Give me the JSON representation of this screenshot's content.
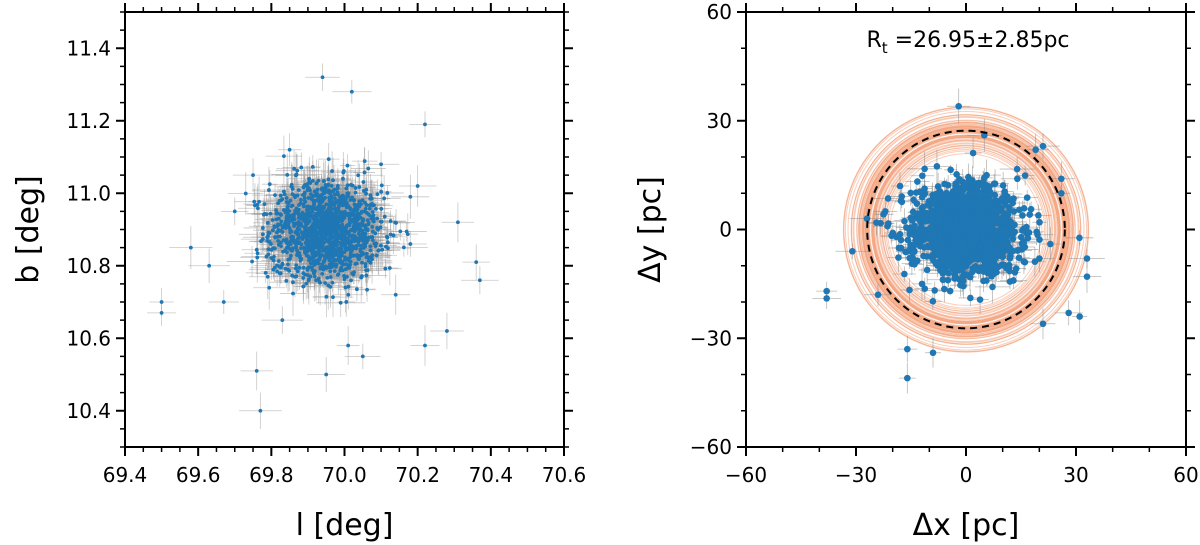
{
  "chart_data": [
    {
      "type": "scatter",
      "xlabel": "l [deg]",
      "ylabel": "b [deg]",
      "xlim": [
        69.4,
        70.6
      ],
      "ylim": [
        10.3,
        11.5
      ],
      "xticks": [
        "69.4",
        "69.6",
        "69.8",
        "70.0",
        "70.2",
        "70.4",
        "70.6"
      ],
      "yticks": [
        "10.4",
        "10.6",
        "10.8",
        "11.0",
        "11.2",
        "11.4"
      ],
      "cluster_center": [
        69.95,
        10.9
      ],
      "cluster_spread_deg": 0.09,
      "n_core_points": 1400,
      "marker_color": "#1f77b4",
      "errorbar_color": "#9a9a9a",
      "points": [
        {
          "x": 69.5,
          "y": 10.7
        },
        {
          "x": 69.5,
          "y": 10.67
        },
        {
          "x": 69.76,
          "y": 10.51
        },
        {
          "x": 69.77,
          "y": 10.4
        },
        {
          "x": 69.94,
          "y": 11.32
        },
        {
          "x": 70.02,
          "y": 11.28
        },
        {
          "x": 70.22,
          "y": 11.19
        },
        {
          "x": 70.28,
          "y": 10.62
        },
        {
          "x": 70.36,
          "y": 10.81
        },
        {
          "x": 70.37,
          "y": 10.76
        },
        {
          "x": 69.95,
          "y": 10.5
        },
        {
          "x": 70.05,
          "y": 10.55
        },
        {
          "x": 70.01,
          "y": 10.58
        },
        {
          "x": 70.22,
          "y": 10.58
        },
        {
          "x": 69.63,
          "y": 10.8
        },
        {
          "x": 69.67,
          "y": 10.7
        },
        {
          "x": 69.58,
          "y": 10.85
        },
        {
          "x": 70.18,
          "y": 10.86
        },
        {
          "x": 70.31,
          "y": 10.92
        },
        {
          "x": 70.14,
          "y": 10.72
        },
        {
          "x": 69.75,
          "y": 11.05
        },
        {
          "x": 69.85,
          "y": 11.12
        },
        {
          "x": 70.1,
          "y": 11.08
        },
        {
          "x": 70.2,
          "y": 11.02
        },
        {
          "x": 69.7,
          "y": 10.95
        },
        {
          "x": 69.83,
          "y": 10.65
        }
      ]
    },
    {
      "type": "scatter",
      "xlabel": "Δx [pc]",
      "ylabel": "Δy [pc]",
      "xlim": [
        -60,
        60
      ],
      "ylim": [
        -60,
        60
      ],
      "xticks": [
        "−60",
        "−30",
        "0",
        "30",
        "60"
      ],
      "yticks": [
        "−60",
        "−30",
        "0",
        "30",
        "60"
      ],
      "annotation": "R",
      "annotation_sub": "t",
      "annotation_value": " =26.95±2.85pc",
      "tidal_radius": 26.95,
      "tidal_radius_err": 2.85,
      "cluster_spread_pc": 6,
      "n_core_points": 1400,
      "marker_color": "#1f77b4",
      "ring_color": "#f4a582",
      "circle_color": "#000000",
      "points": [
        {
          "x": -38,
          "y": -17
        },
        {
          "x": -38,
          "y": -19
        },
        {
          "x": -16,
          "y": -33
        },
        {
          "x": -16,
          "y": -41
        },
        {
          "x": -9,
          "y": -34
        },
        {
          "x": -2,
          "y": 34
        },
        {
          "x": 33,
          "y": -8
        },
        {
          "x": 33,
          "y": -13
        },
        {
          "x": 31,
          "y": -24
        },
        {
          "x": 28,
          "y": -23
        },
        {
          "x": 21,
          "y": -26
        },
        {
          "x": 26,
          "y": 14
        },
        {
          "x": 21,
          "y": 23
        },
        {
          "x": 19,
          "y": 22
        },
        {
          "x": 5,
          "y": 26
        },
        {
          "x": -22,
          "y": 5
        },
        {
          "x": -19,
          "y": -2
        },
        {
          "x": -31,
          "y": -6
        },
        {
          "x": -18,
          "y": 12
        },
        {
          "x": -12,
          "y": -15
        },
        {
          "x": 20,
          "y": -8
        },
        {
          "x": 14,
          "y": 14
        },
        {
          "x": 26,
          "y": 10
        },
        {
          "x": -24,
          "y": -18
        },
        {
          "x": 23,
          "y": -4
        },
        {
          "x": -27,
          "y": 3
        }
      ]
    }
  ]
}
